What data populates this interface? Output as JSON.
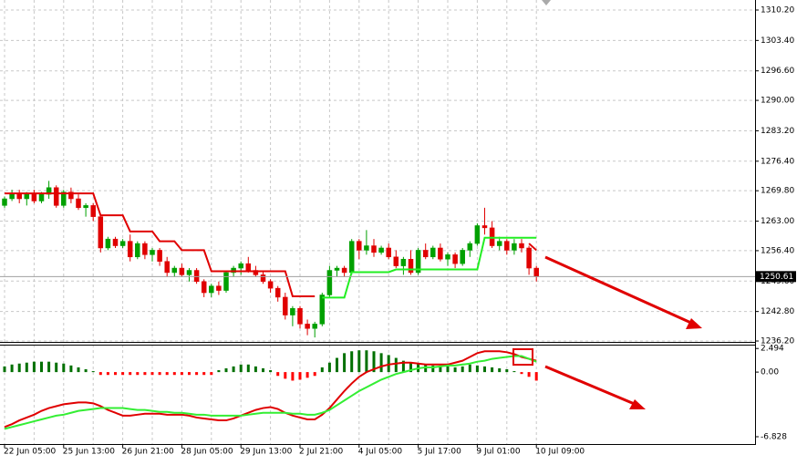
{
  "chart_data": [
    {
      "type": "candlestick",
      "categories": [
        "22 Jun 05:00",
        null,
        null,
        null,
        null,
        null,
        null,
        null,
        "25 Jun 13:00",
        null,
        null,
        null,
        null,
        null,
        null,
        null,
        "26 Jun 21:00",
        null,
        null,
        null,
        null,
        null,
        null,
        null,
        "28 Jun 05:00",
        null,
        null,
        null,
        null,
        null,
        null,
        null,
        "29 Jun 13:00",
        null,
        null,
        null,
        null,
        null,
        null,
        null,
        "2 Jul 21:00",
        null,
        null,
        null,
        null,
        null,
        null,
        null,
        "4 Jul 05:00",
        null,
        null,
        null,
        null,
        null,
        null,
        null,
        "5 Jul 17:00",
        null,
        null,
        null,
        null,
        null,
        null,
        null,
        "9 Jul 01:00",
        null,
        null,
        null,
        null,
        null,
        null,
        null,
        "10 Jul 09:00"
      ],
      "open": [
        1266.5,
        1268,
        1269,
        1268,
        1269,
        1267.5,
        1269,
        1270.5,
        1266.5,
        1269.5,
        1268,
        1266,
        1266.5,
        1264,
        1257,
        1259,
        1257.5,
        1258.5,
        1255,
        1258,
        1255.5,
        1256.5,
        1254,
        1251.5,
        1252.5,
        1251,
        1252,
        1249.5,
        1247,
        1248.5,
        1247.5,
        1251.5,
        1252.5,
        1253.5,
        1252,
        1251,
        1249.5,
        1248,
        1246,
        1242,
        1243.5,
        1240,
        1239,
        1240,
        1246.5,
        1252,
        1252.5,
        1251.5,
        1258.5,
        1256.5,
        1257.5,
        1256,
        1257,
        1255,
        1253,
        1254.5,
        1251.5,
        1256.5,
        1255,
        1257,
        1254.5,
        1255.5,
        1253.5,
        1256.5,
        1258,
        1262,
        1261.5,
        1257.5,
        1258.5,
        1256.5,
        1258,
        1257,
        1252.5
      ],
      "high": [
        1268.5,
        1270,
        1270,
        1269.5,
        1270,
        1269.5,
        1272,
        1271,
        1270,
        1270.5,
        1269,
        1267,
        1267,
        1264.5,
        1259.5,
        1259.5,
        1259,
        1260,
        1258.5,
        1258.5,
        1257,
        1257,
        1255,
        1253,
        1253.5,
        1252.5,
        1252.5,
        1250,
        1249,
        1249.5,
        1252,
        1253,
        1254,
        1255,
        1253,
        1252,
        1250,
        1248.5,
        1247,
        1244,
        1244,
        1241,
        1240.5,
        1247,
        1253,
        1253,
        1253,
        1259,
        1259,
        1261,
        1259,
        1257.5,
        1258,
        1256.5,
        1255,
        1256.5,
        1257,
        1258,
        1257.5,
        1258,
        1256,
        1256,
        1257,
        1258.5,
        1262.5,
        1266,
        1263,
        1259.5,
        1259,
        1259,
        1259,
        1257.5,
        1253
      ],
      "low": [
        1266,
        1267.5,
        1267,
        1266.5,
        1267,
        1267,
        1268,
        1266,
        1266,
        1267,
        1265.5,
        1264,
        1263,
        1256,
        1256.5,
        1257,
        1257,
        1254,
        1254.5,
        1254.5,
        1254,
        1253,
        1250.5,
        1250.5,
        1250.5,
        1249.5,
        1249,
        1246,
        1246,
        1246.5,
        1247,
        1250.5,
        1251,
        1251.5,
        1250.5,
        1249,
        1247,
        1245,
        1241,
        1239.5,
        1239,
        1237.5,
        1237,
        1239.5,
        1246,
        1250.5,
        1250.5,
        1251,
        1254.5,
        1255.5,
        1255,
        1255.5,
        1254.5,
        1252.5,
        1251,
        1251,
        1251,
        1254.5,
        1254.5,
        1254,
        1253,
        1252.5,
        1253,
        1255,
        1257.5,
        1260,
        1257,
        1256.5,
        1255.5,
        1255.5,
        1256,
        1251,
        1249.5
      ],
      "close": [
        1268,
        1269,
        1268,
        1269,
        1267.5,
        1269,
        1270.5,
        1266.5,
        1269.5,
        1268,
        1266,
        1266.5,
        1264,
        1257,
        1259,
        1257.5,
        1258.5,
        1255,
        1258,
        1255.5,
        1256.5,
        1254,
        1251.5,
        1252.5,
        1251,
        1252,
        1249.5,
        1247,
        1248.5,
        1247.5,
        1251.5,
        1252.5,
        1253.5,
        1252,
        1251,
        1249.5,
        1248,
        1246,
        1242,
        1243.5,
        1240,
        1239,
        1240,
        1246.5,
        1252,
        1252.5,
        1251.5,
        1258.5,
        1256.5,
        1257.5,
        1256,
        1257,
        1255,
        1253,
        1254.5,
        1251.5,
        1256.5,
        1255,
        1257,
        1254.5,
        1255.5,
        1253.5,
        1256.5,
        1258,
        1262,
        1261.5,
        1257.5,
        1258.5,
        1256.5,
        1258,
        1257,
        1252.5,
        1250.61
      ],
      "up_color": "#00a000",
      "down_color": "#e00000",
      "lines": [
        {
          "color": "#e00000",
          "values": [
            1269.2,
            1269.2,
            1269.2,
            1269.2,
            1269.2,
            1269.2,
            1269.2,
            1269.2,
            1269.2,
            1269.2,
            1269.2,
            1269.2,
            1269.2,
            1264.3,
            1264.3,
            1264.3,
            1264.3,
            1260.7,
            1260.7,
            1260.7,
            1260.7,
            1258.5,
            1258.5,
            1258.5,
            1256.5,
            1256.5,
            1256.5,
            1256.5,
            1251.8,
            1251.8,
            1251.8,
            1251.8,
            1251.8,
            1251.8,
            1251.8,
            1251.8,
            1251.8,
            1251.8,
            1251.8,
            1246.2,
            1246.2,
            1246.2,
            1246.2,
            null,
            null,
            null,
            null,
            null,
            null,
            null,
            null,
            null,
            null,
            null,
            null,
            null,
            null,
            null,
            null,
            null,
            null,
            null,
            null,
            null,
            null,
            null,
            null,
            null,
            null,
            null,
            null,
            1258,
            1256.5
          ]
        },
        {
          "color": "#22ee22",
          "values": [
            null,
            null,
            null,
            null,
            null,
            null,
            null,
            null,
            null,
            null,
            null,
            null,
            null,
            null,
            null,
            null,
            null,
            null,
            null,
            null,
            null,
            null,
            null,
            null,
            null,
            null,
            null,
            null,
            null,
            null,
            null,
            null,
            null,
            null,
            null,
            null,
            null,
            null,
            null,
            null,
            null,
            null,
            null,
            1245.9,
            1245.9,
            1245.9,
            1245.9,
            1251.6,
            1251.6,
            1251.6,
            1251.6,
            1251.6,
            1251.6,
            1252.2,
            1252.2,
            1252.2,
            1252.2,
            1252.2,
            1252.2,
            1252.2,
            1252.2,
            1252.2,
            1252.2,
            1252.2,
            1252.2,
            1259.3,
            1259.3,
            1259.3,
            1259.3,
            1259.3,
            1259.3,
            1259.3,
            1259.3
          ]
        }
      ],
      "last_price": 1250.61,
      "ylim": [
        1236.0,
        1312.44
      ],
      "yticks": [
        {
          "value": 1310.2,
          "label": "1310.20"
        },
        {
          "value": 1303.4,
          "label": "1303.40"
        },
        {
          "value": 1296.6,
          "label": "1296.60"
        },
        {
          "value": 1290,
          "label": "1290.00"
        },
        {
          "value": 1283.2,
          "label": "1283.20"
        },
        {
          "value": 1276.4,
          "label": "1276.40"
        },
        {
          "value": 1269.8,
          "label": "1269.80"
        },
        {
          "value": 1263,
          "label": "1263.00"
        },
        {
          "value": 1256.4,
          "label": "1256.40"
        },
        {
          "value": 1249.6,
          "label": "1249.60"
        },
        {
          "value": 1242.8,
          "label": "1242.80"
        },
        {
          "value": 1236.2,
          "label": "1236.20"
        }
      ],
      "grid": true
    },
    {
      "type": "macd",
      "hist": [
        0.6,
        0.8,
        0.9,
        1.0,
        1.1,
        1.1,
        1.1,
        1.0,
        0.9,
        0.7,
        0.5,
        0.3,
        0.1,
        -0.3,
        -0.3,
        -0.3,
        -0.3,
        -0.3,
        -0.3,
        -0.3,
        -0.3,
        -0.3,
        -0.3,
        -0.3,
        -0.3,
        -0.3,
        -0.3,
        -0.3,
        -0.3,
        0.2,
        0.4,
        0.6,
        0.8,
        0.8,
        0.6,
        0.4,
        0.2,
        -0.4,
        -0.7,
        -0.9,
        -0.8,
        -0.6,
        -0.4,
        0.5,
        1.0,
        1.5,
        2.0,
        2.2,
        2.3,
        2.3,
        2.2,
        2.0,
        1.8,
        1.5,
        1.2,
        1.0,
        0.9,
        0.8,
        0.7,
        0.7,
        0.6,
        0.5,
        0.6,
        0.8,
        0.7,
        0.6,
        0.5,
        0.4,
        0.3,
        0.1,
        -0.2,
        -0.5,
        -0.9
      ],
      "hist_up_color": "#007000",
      "hist_down_color": "#ff0000",
      "series": [
        {
          "color": "#e00000",
          "values": [
            -5.8,
            -5.5,
            -5.1,
            -4.8,
            -4.5,
            -4.1,
            -3.8,
            -3.6,
            -3.4,
            -3.3,
            -3.2,
            -3.2,
            -3.3,
            -3.6,
            -4.0,
            -4.3,
            -4.6,
            -4.6,
            -4.5,
            -4.4,
            -4.4,
            -4.4,
            -4.5,
            -4.5,
            -4.5,
            -4.6,
            -4.8,
            -4.9,
            -5.0,
            -5.1,
            -5.1,
            -4.9,
            -4.6,
            -4.3,
            -4.0,
            -3.8,
            -3.7,
            -3.9,
            -4.3,
            -4.6,
            -4.8,
            -5.0,
            -5.0,
            -4.5,
            -3.8,
            -2.9,
            -2.0,
            -1.2,
            -0.5,
            0.0,
            0.3,
            0.6,
            0.8,
            0.9,
            1.0,
            1.0,
            0.9,
            0.8,
            0.8,
            0.8,
            0.8,
            1.0,
            1.2,
            1.6,
            2.0,
            2.2,
            2.2,
            2.2,
            2.1,
            1.9,
            1.6,
            1.4,
            1.2
          ]
        },
        {
          "color": "#33ee33",
          "values": [
            -6.0,
            -5.8,
            -5.6,
            -5.4,
            -5.2,
            -5.0,
            -4.8,
            -4.6,
            -4.5,
            -4.3,
            -4.1,
            -4.0,
            -3.9,
            -3.8,
            -3.8,
            -3.8,
            -3.8,
            -3.9,
            -4.0,
            -4.0,
            -4.1,
            -4.2,
            -4.2,
            -4.3,
            -4.3,
            -4.4,
            -4.5,
            -4.5,
            -4.6,
            -4.6,
            -4.6,
            -4.6,
            -4.6,
            -4.5,
            -4.4,
            -4.3,
            -4.3,
            -4.3,
            -4.3,
            -4.4,
            -4.4,
            -4.5,
            -4.5,
            -4.3,
            -4.0,
            -3.5,
            -3.0,
            -2.5,
            -2.0,
            -1.6,
            -1.2,
            -0.8,
            -0.5,
            -0.2,
            0.0,
            0.2,
            0.4,
            0.5,
            0.5,
            0.6,
            0.7,
            0.7,
            0.8,
            0.9,
            1.1,
            1.2,
            1.4,
            1.5,
            1.6,
            1.7,
            1.7,
            1.4,
            1.1
          ]
        }
      ],
      "ylim": [
        -7.6,
        2.9
      ],
      "yticks": [
        2.494,
        {
          "value": 0,
          "label": "0.00"
        },
        -6.828
      ]
    }
  ]
}
